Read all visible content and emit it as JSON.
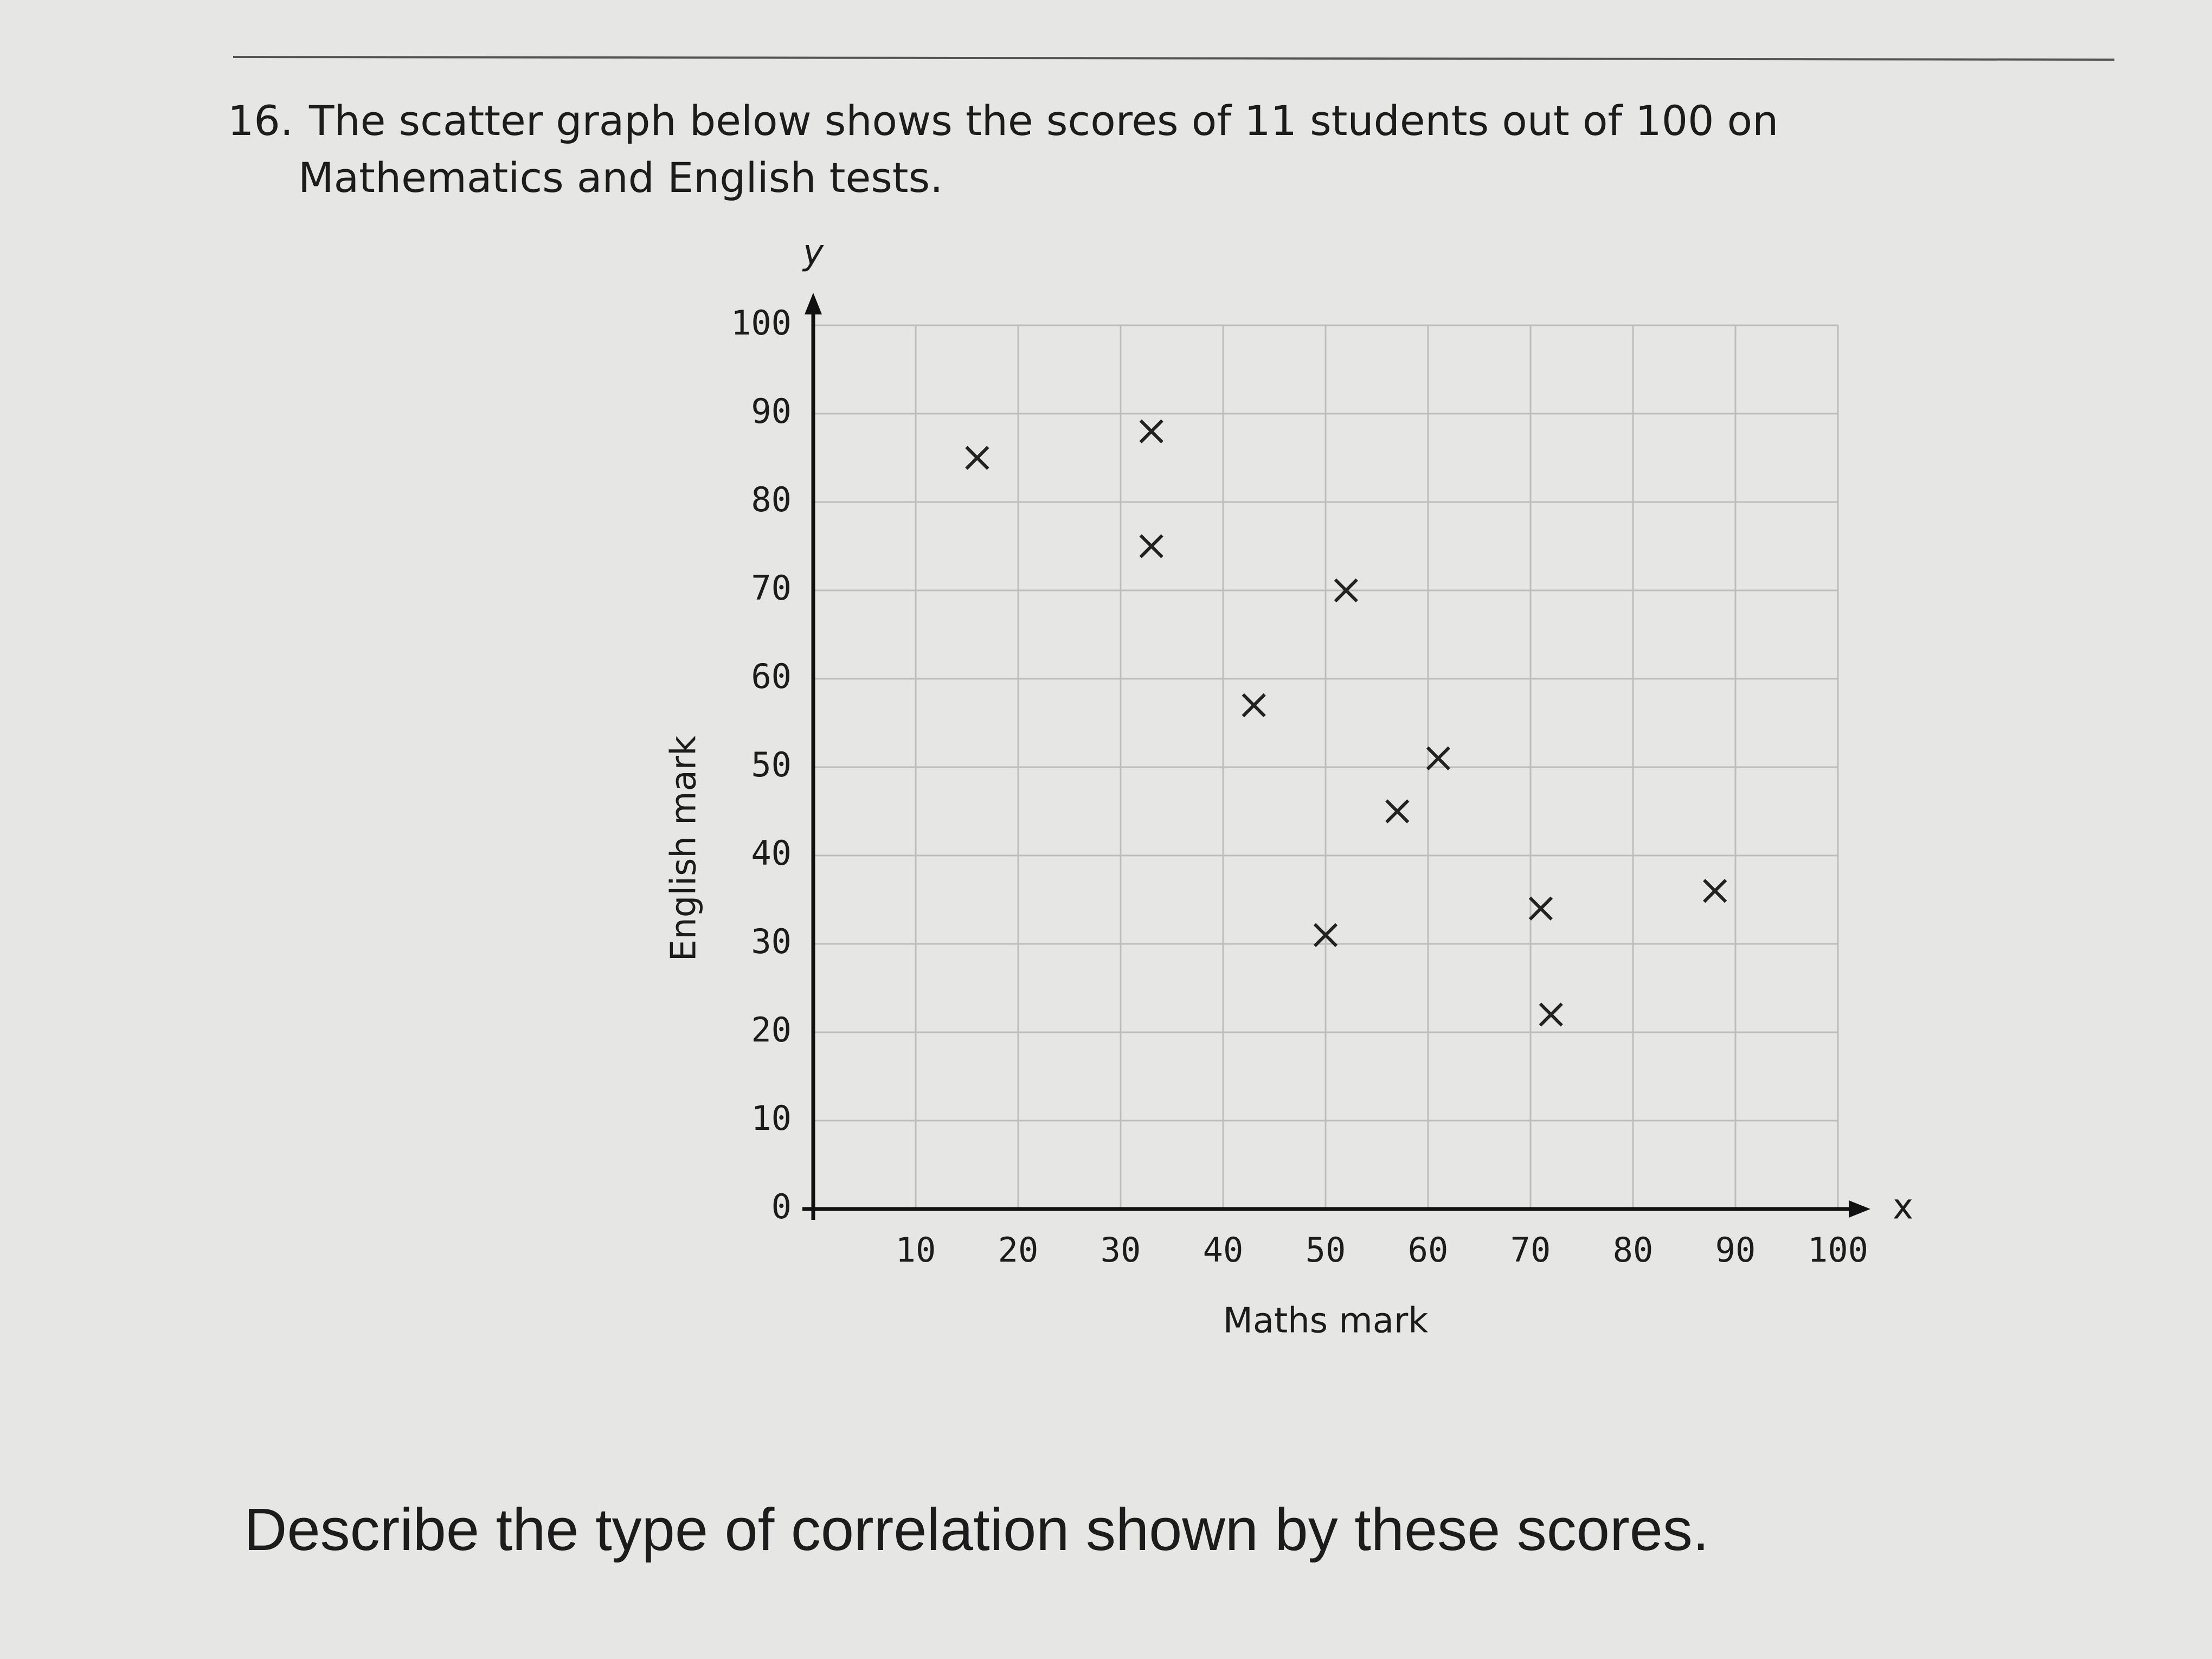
{
  "question": {
    "number": "16.",
    "lines": [
      "The scatter graph below shows the scores of 11 students out of 100 on",
      "Mathematics and English tests."
    ]
  },
  "prompt": "Describe the type of correlation shown by these scores.",
  "chart_data": {
    "type": "scatter",
    "x_label": "Maths mark",
    "y_label": "English mark",
    "x_letter": "x",
    "y_letter": "y",
    "x": [
      16,
      33,
      33,
      52,
      43,
      61,
      57,
      50,
      71,
      88,
      72
    ],
    "values": [
      85,
      88,
      75,
      70,
      57,
      51,
      45,
      31,
      34,
      36,
      22
    ],
    "color": "#222222",
    "xlim": [
      0,
      100
    ],
    "ylim": [
      0,
      100
    ],
    "xticks": [
      10,
      20,
      30,
      40,
      50,
      60,
      70,
      80,
      90,
      100
    ],
    "yticks": [
      0,
      10,
      20,
      30,
      40,
      50,
      60,
      70,
      80,
      90,
      100
    ],
    "grid": true
  }
}
